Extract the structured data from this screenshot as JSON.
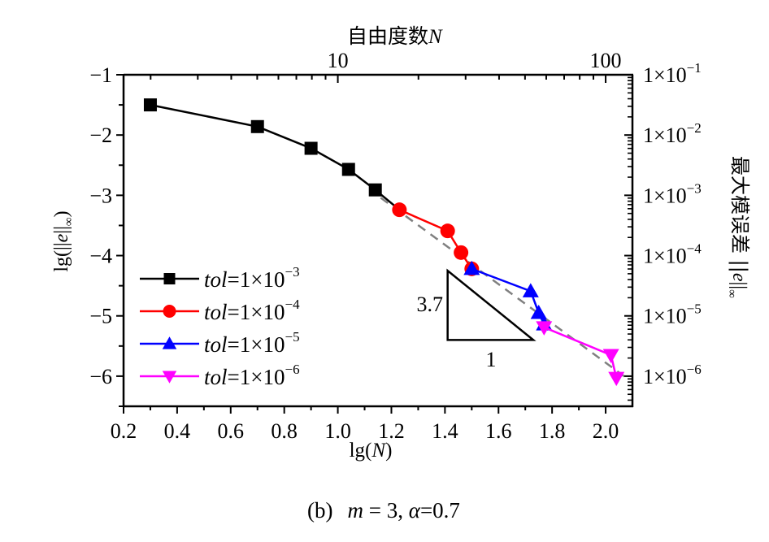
{
  "chart_data": {
    "type": "line",
    "title": "",
    "caption": {
      "prefix": "(b)",
      "m_var": "m",
      "m_eq": " = 3, ",
      "alpha_var": "α",
      "alpha_eq": "=0.7"
    },
    "xlabel": {
      "pre": "lg(",
      "var": "N",
      "post": ")"
    },
    "ylabel": {
      "pre": "lg(||",
      "var": "e",
      "post": "||",
      "sub": "∞",
      "close": ")"
    },
    "top_xlabel": {
      "text": "自由度数",
      "var": "N"
    },
    "right_ylabel": {
      "text": "最大模误差 ||",
      "var": "e",
      "post": "||",
      "sub": "∞"
    },
    "xlim": [
      0.2,
      2.1
    ],
    "ylim": [
      -6.5,
      -1
    ],
    "x_ticks": [
      0.2,
      0.4,
      0.6,
      0.8,
      1.0,
      1.2,
      1.4,
      1.6,
      1.8,
      2.0
    ],
    "x_tick_labels": [
      "0.2",
      "0.4",
      "0.6",
      "0.8",
      "1.0",
      "1.2",
      "1.4",
      "1.6",
      "1.8",
      "2.0"
    ],
    "y_ticks": [
      -1,
      -2,
      -3,
      -4,
      -5,
      -6
    ],
    "y_tick_labels": [
      "−1",
      "−2",
      "−3",
      "−4",
      "−5",
      "−6"
    ],
    "top_ticks": [
      10,
      100
    ],
    "top_tick_labels": [
      "10",
      "100"
    ],
    "right_ticks": [
      -1,
      -2,
      -3,
      -4,
      -5,
      -6
    ],
    "right_tick_labels": [
      {
        "base": "1×10",
        "exp": "−1"
      },
      {
        "base": "1×10",
        "exp": "−2"
      },
      {
        "base": "1×10",
        "exp": "−3"
      },
      {
        "base": "1×10",
        "exp": "−4"
      },
      {
        "base": "1×10",
        "exp": "−5"
      },
      {
        "base": "1×10",
        "exp": "−6"
      }
    ],
    "grid": false,
    "legend_position": "bottom-left",
    "series": [
      {
        "name": "tol=1×10−3",
        "label_var": "tol",
        "label_eq": "=1×10",
        "label_exp": "−3",
        "color": "#000000",
        "marker": "square",
        "x": [
          0.3,
          0.7,
          0.9,
          1.04,
          1.14,
          1.23
        ],
        "y": [
          -1.5,
          -1.86,
          -2.22,
          -2.57,
          -2.91,
          -3.24
        ]
      },
      {
        "name": "tol=1×10−4",
        "label_var": "tol",
        "label_eq": "=1×10",
        "label_exp": "−4",
        "color": "#ff0000",
        "marker": "circle",
        "x": [
          1.23,
          1.41,
          1.46,
          1.5
        ],
        "y": [
          -3.24,
          -3.59,
          -3.95,
          -4.22
        ]
      },
      {
        "name": "tol=1×10−5",
        "label_var": "tol",
        "label_eq": "=1×10",
        "label_exp": "−5",
        "color": "#0000ff",
        "marker": "triangle-up",
        "x": [
          1.5,
          1.72,
          1.75,
          1.77
        ],
        "y": [
          -4.22,
          -4.59,
          -4.95,
          -5.14
        ]
      },
      {
        "name": "tol=1×10−6",
        "label_var": "tol",
        "label_eq": "=1×10",
        "label_exp": "−6",
        "color": "#ff00ff",
        "marker": "triangle-down",
        "x": [
          1.77,
          2.02,
          2.04
        ],
        "y": [
          -5.19,
          -5.65,
          -6.03
        ]
      }
    ],
    "reference_line": {
      "color": "#808080",
      "style": "dashed",
      "x": [
        1.16,
        2.09
      ],
      "y": [
        -3.04,
        -6.07
      ]
    },
    "slope_triangle": {
      "rise_label": "3.7",
      "run_label": "1",
      "x": [
        1.41,
        1.73
      ],
      "y": [
        -4.25,
        -5.4
      ]
    }
  }
}
